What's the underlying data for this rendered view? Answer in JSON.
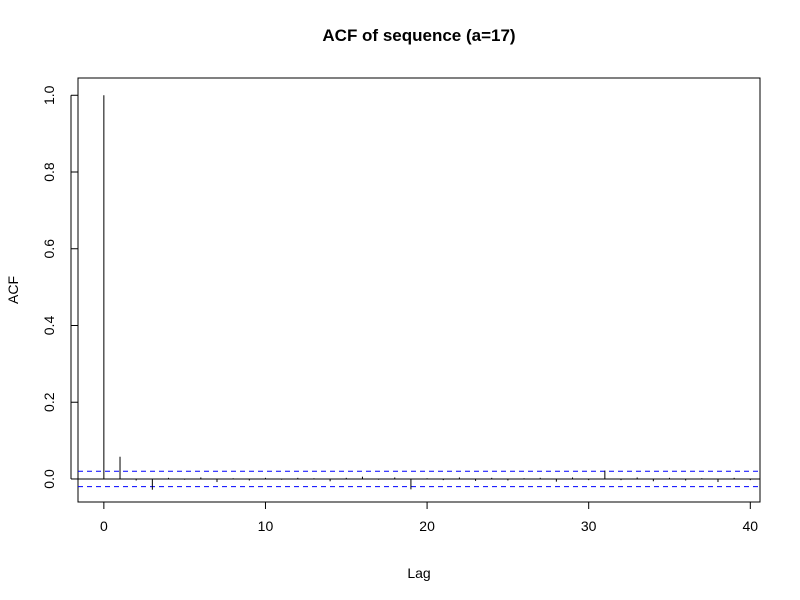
{
  "chart_data": {
    "type": "bar",
    "title": "ACF of sequence (a=17)",
    "xlabel": "Lag",
    "ylabel": "ACF",
    "xlim": [
      -1.6,
      40.6
    ],
    "ylim": [
      -0.06,
      1.045
    ],
    "x_ticks": [
      0,
      10,
      20,
      30,
      40
    ],
    "y_ticks": [
      0.0,
      0.2,
      0.4,
      0.6,
      0.8,
      1.0
    ],
    "x_tick_labels": [
      "0",
      "10",
      "20",
      "30",
      "40"
    ],
    "y_tick_labels": [
      "0.0",
      "0.2",
      "0.4",
      "0.6",
      "0.8",
      "1.0"
    ],
    "lags": [
      0,
      1,
      2,
      3,
      4,
      5,
      6,
      7,
      8,
      9,
      10,
      11,
      12,
      13,
      14,
      15,
      16,
      17,
      18,
      19,
      20,
      21,
      22,
      23,
      24,
      25,
      26,
      27,
      28,
      29,
      30,
      31,
      32,
      33,
      34,
      35,
      36,
      37,
      38,
      39,
      40
    ],
    "acf": [
      1.0,
      0.058,
      -0.004,
      -0.028,
      0.003,
      -0.002,
      0.004,
      -0.008,
      0.002,
      -0.004,
      0.003,
      -0.002,
      0.003,
      0.002,
      -0.006,
      0.003,
      0.006,
      -0.002,
      0.004,
      -0.027,
      0.002,
      -0.003,
      0.004,
      -0.005,
      0.003,
      -0.004,
      0.002,
      0.003,
      -0.007,
      0.004,
      -0.003,
      0.022,
      -0.003,
      0.004,
      -0.006,
      0.003,
      -0.004,
      0.002,
      -0.008,
      0.003,
      -0.003
    ],
    "confidence_bound": 0.02,
    "colors": {
      "bars": "#000000",
      "confidence_lines": "#0000ff",
      "zero_line": "#000000"
    },
    "grid": false
  }
}
